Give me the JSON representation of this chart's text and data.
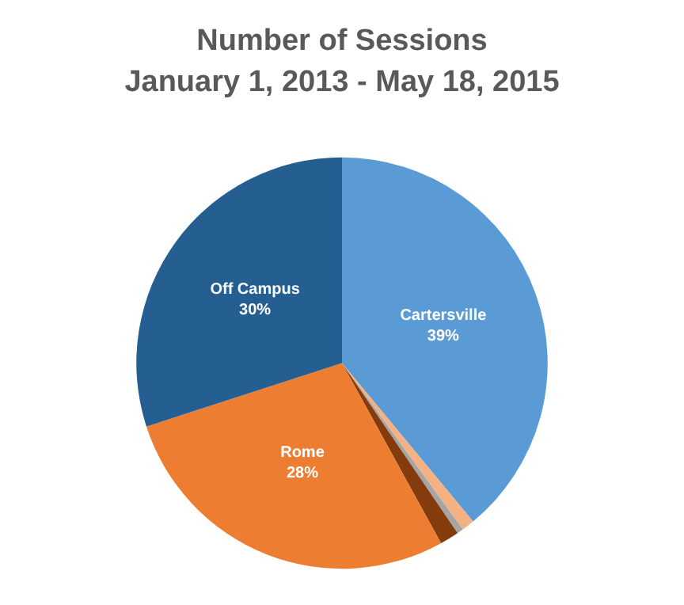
{
  "chart_data": {
    "type": "pie",
    "title": "Number of Sessions\nJanuary 1, 2013 - May 18, 2015",
    "categories": [
      "Cartersville",
      null,
      null,
      null,
      "Rome",
      "Off Campus"
    ],
    "values": [
      39,
      1,
      0.5,
      1.5,
      28,
      30
    ],
    "colors": [
      "#5b9bd5",
      "#f4b183",
      "#a5a5a5",
      "#843c0c",
      "#ed7d31",
      "#255e91"
    ],
    "value_labels": [
      "39%",
      null,
      null,
      null,
      "28%",
      "30%"
    ],
    "legend": false
  }
}
